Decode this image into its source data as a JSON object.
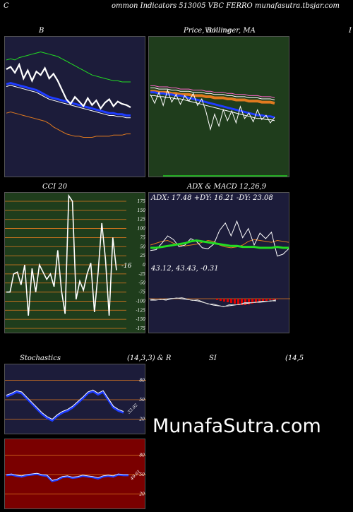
{
  "header": {
    "left": "C",
    "title": "ommon  Indicators 513005 VBC FERRO munafasutra.tbsjar.com"
  },
  "panels": {
    "b": {
      "title": "B"
    },
    "price": {
      "title": "Price,  Bollinger,  MA",
      "overlay": "Volume"
    },
    "right_edge": {
      "label": "I"
    },
    "cci": {
      "title": "CCI 20",
      "value_label": "-16"
    },
    "adx": {
      "title": "ADX  & MACD 12,26,9",
      "adx_label": "ADX: 17.48  +DY: 16.21 -DY: 23.08",
      "macd_label": "43.12,  43.43,  -0.31"
    },
    "stoch": {
      "title": "Stochastics",
      "params": "(14,3,3) & R",
      "value_label": "33.02"
    },
    "rsi": {
      "title": "SI",
      "params": "(14,5",
      "value_label": "49.61"
    }
  },
  "watermark": "MunafaSutra.com",
  "colors": {
    "navy": "#1c1c3a",
    "green_bg": "#1f3d1c",
    "red_bg": "#7a0000",
    "orange": "#e07a1f",
    "blue": "#1e3cff",
    "lime": "#22dd22",
    "band_green": "#22cc22"
  },
  "chart_data": [
    {
      "type": "line",
      "title": "B",
      "series": [
        {
          "values": [
            88,
            90,
            85,
            92,
            80,
            87,
            78,
            86,
            83,
            89,
            80,
            84,
            78,
            70,
            62,
            58,
            64,
            60,
            56,
            63,
            57,
            61,
            54,
            59,
            62,
            56,
            60,
            58,
            57,
            55
          ]
        },
        {
          "values": [
            75,
            76,
            75,
            74,
            73,
            72,
            71,
            70,
            68,
            66,
            64,
            63,
            62,
            61,
            60,
            59,
            58,
            57,
            56,
            55,
            54,
            53,
            52,
            51,
            50,
            50,
            49,
            49,
            48,
            48
          ]
        },
        {
          "values": [
            96,
            97,
            96,
            98,
            99,
            100,
            101,
            102,
            103,
            102,
            101,
            100,
            99,
            97,
            95,
            93,
            91,
            89,
            87,
            85,
            83,
            82,
            81,
            80,
            79,
            78,
            78,
            77,
            77,
            77
          ]
        },
        {
          "values": [
            50,
            51,
            50,
            49,
            48,
            47,
            46,
            45,
            44,
            43,
            41,
            38,
            36,
            34,
            32,
            31,
            30,
            30,
            29,
            29,
            29,
            30,
            30,
            30,
            30,
            31,
            31,
            31,
            32,
            32
          ]
        }
      ]
    },
    {
      "type": "line",
      "title": "Price,  Bollinger,  MA",
      "series": [
        {
          "values": [
            70,
            62,
            72,
            60,
            74,
            63,
            70,
            61,
            69,
            64,
            71,
            60,
            66,
            54,
            38,
            52,
            41,
            56,
            46,
            55,
            44,
            59,
            48,
            53,
            45,
            56,
            47,
            51,
            44,
            49
          ]
        },
        {
          "values": [
            72,
            72,
            71,
            71,
            70,
            70,
            69,
            69,
            68,
            67,
            66,
            65,
            64,
            63,
            62,
            61,
            60,
            59,
            58,
            57,
            56,
            55,
            54,
            53,
            52,
            51,
            51,
            50,
            50,
            49
          ]
        },
        {
          "values": [
            78,
            78,
            77,
            77,
            77,
            76,
            76,
            75,
            75,
            75,
            74,
            74,
            74,
            73,
            73,
            72,
            72,
            72,
            71,
            71,
            70,
            70,
            70,
            69,
            69,
            69,
            68,
            68,
            68,
            67
          ]
        }
      ]
    },
    {
      "type": "line",
      "title": "CCI 20",
      "ylim": [
        -175,
        175
      ],
      "yticks": [
        175,
        150,
        125,
        100,
        75,
        50,
        25,
        0,
        -25,
        -50,
        -75,
        -100,
        -125,
        -150,
        -175
      ],
      "series": [
        {
          "values": [
            -75,
            -75,
            -25,
            -20,
            -55,
            0,
            -140,
            -10,
            -75,
            0,
            -20,
            -40,
            -25,
            -60,
            40,
            -70,
            -135,
            190,
            175,
            -95,
            -45,
            -70,
            -25,
            5,
            -130,
            -20,
            115,
            15,
            -140,
            75,
            -15
          ]
        }
      ]
    },
    {
      "type": "line",
      "title": "ADX  & MACD 12,26,9",
      "series": [
        {
          "name": "ADX",
          "values": [
            17,
            17,
            18,
            19,
            20,
            21,
            22,
            24,
            25,
            24,
            23,
            22,
            21,
            20,
            19,
            19,
            18,
            18,
            18,
            17,
            17,
            17,
            18,
            17,
            17
          ]
        },
        {
          "name": "+DY",
          "values": [
            14,
            15,
            22,
            30,
            26,
            18,
            20,
            27,
            24,
            17,
            16,
            21,
            36,
            44,
            30,
            46,
            28,
            38,
            20,
            33,
            27,
            34,
            8,
            10,
            16
          ]
        },
        {
          "name": "-DY",
          "values": [
            20,
            22,
            24,
            25,
            22,
            20,
            19,
            20,
            21,
            23,
            25,
            24,
            20,
            18,
            17,
            18,
            20,
            24,
            26,
            25,
            24,
            23,
            25,
            24,
            23
          ]
        }
      ]
    },
    {
      "type": "line",
      "title": "Stochastics",
      "ylim": [
        0,
        100
      ],
      "yticks": [
        80,
        50,
        20
      ],
      "series": [
        {
          "values": [
            55,
            58,
            62,
            60,
            52,
            44,
            36,
            28,
            22,
            18,
            25,
            30,
            33,
            38,
            45,
            52,
            60,
            63,
            58,
            62,
            50,
            38,
            33,
            30
          ]
        }
      ]
    },
    {
      "type": "line",
      "title": "SI",
      "ylim": [
        0,
        100
      ],
      "yticks": [
        80,
        50,
        20
      ],
      "series": [
        {
          "values": [
            49,
            50,
            48,
            47,
            49,
            50,
            51,
            49,
            48,
            40,
            42,
            46,
            47,
            45,
            46,
            48,
            47,
            46,
            44,
            47,
            48,
            47,
            50,
            49,
            49
          ]
        }
      ]
    }
  ]
}
